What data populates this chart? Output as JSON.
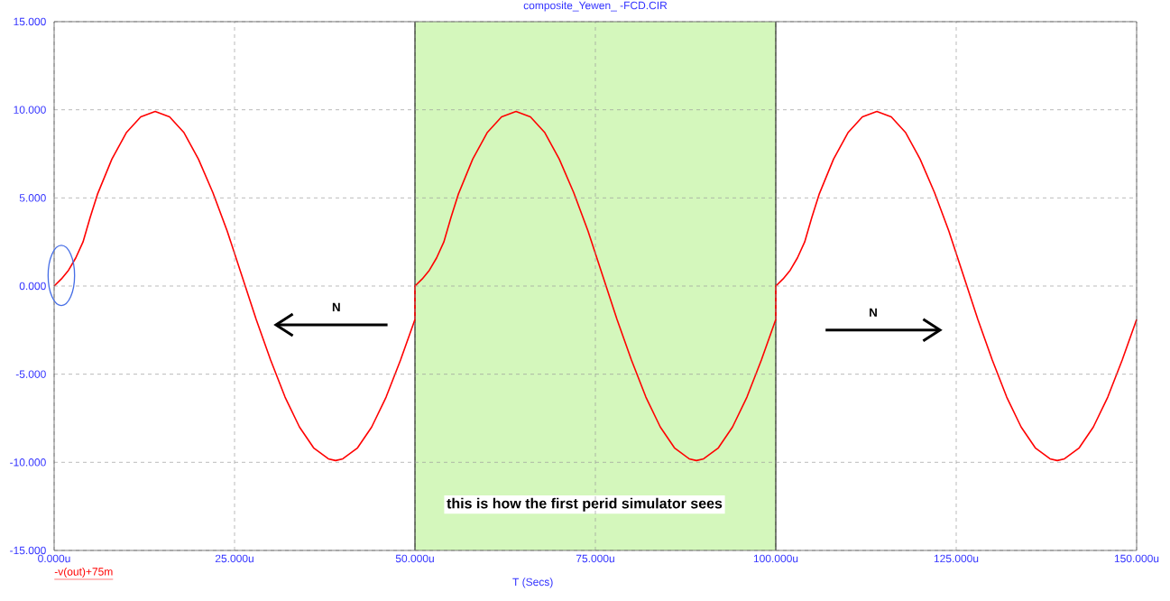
{
  "chart_data": {
    "type": "line",
    "title": "composite_Yewen_ -FCD.CIR",
    "xlabel": "T (Secs)",
    "series": [
      {
        "name": "-v(out)+75m",
        "color": "#ff0000",
        "x": [
          0,
          1,
          2,
          3,
          4,
          5,
          6,
          8,
          10,
          12,
          14,
          16,
          18,
          20,
          22,
          24,
          26,
          28,
          30,
          32,
          34,
          36,
          38,
          39,
          40,
          42,
          44,
          46,
          48,
          50,
          50,
          51,
          52,
          53,
          54,
          55,
          56,
          58,
          60,
          62,
          64,
          66,
          68,
          70,
          72,
          74,
          76,
          78,
          80,
          82,
          84,
          86,
          88,
          89,
          90,
          92,
          94,
          96,
          98,
          100,
          100,
          101,
          102,
          103,
          104,
          105,
          106,
          108,
          110,
          112,
          114,
          116,
          118,
          120,
          122,
          124,
          126,
          128,
          130,
          132,
          134,
          136,
          138,
          139,
          140,
          142,
          144,
          146,
          148,
          150
        ],
        "values": [
          0,
          0.4,
          0.9,
          1.6,
          2.5,
          3.9,
          5.2,
          7.2,
          8.7,
          9.6,
          9.9,
          9.6,
          8.7,
          7.2,
          5.3,
          3.1,
          0.6,
          -1.9,
          -4.2,
          -6.3,
          -8.0,
          -9.2,
          -9.8,
          -9.9,
          -9.8,
          -9.2,
          -8.0,
          -6.3,
          -4.2,
          -1.9,
          0,
          0.4,
          0.9,
          1.6,
          2.5,
          3.9,
          5.2,
          7.2,
          8.7,
          9.6,
          9.9,
          9.6,
          8.7,
          7.2,
          5.3,
          3.1,
          0.6,
          -1.9,
          -4.2,
          -6.3,
          -8.0,
          -9.2,
          -9.8,
          -9.9,
          -9.8,
          -9.2,
          -8.0,
          -6.3,
          -4.2,
          -1.9,
          0,
          0.4,
          0.9,
          1.6,
          2.5,
          3.9,
          5.2,
          7.2,
          8.7,
          9.6,
          9.9,
          9.6,
          8.7,
          7.2,
          5.3,
          3.1,
          0.6,
          -1.9,
          -4.2,
          -6.3,
          -8.0,
          -9.2,
          -9.8,
          -9.9,
          -9.8,
          -9.2,
          -8.0,
          -6.3,
          -4.2,
          -1.9
        ]
      }
    ],
    "xlim": [
      0,
      150
    ],
    "xticks": [
      {
        "value": 0,
        "label": "0.000u"
      },
      {
        "value": 25,
        "label": "25.000u"
      },
      {
        "value": 50,
        "label": "50.000u"
      },
      {
        "value": 75,
        "label": "75.000u"
      },
      {
        "value": 100,
        "label": "100.000u"
      },
      {
        "value": 125,
        "label": "125.000u"
      },
      {
        "value": 150,
        "label": "150.000u"
      }
    ],
    "ylim": [
      -15,
      15
    ],
    "yticks": [
      {
        "value": -15,
        "label": "-15.000"
      },
      {
        "value": -10,
        "label": "-10.000"
      },
      {
        "value": -5,
        "label": "-5.000"
      },
      {
        "value": 0,
        "label": "0.000"
      },
      {
        "value": 5,
        "label": "5.000"
      },
      {
        "value": 10,
        "label": "10.000"
      },
      {
        "value": 15,
        "label": "15.000"
      }
    ],
    "bands": [
      {
        "axis": "x",
        "from": 50,
        "to": 100,
        "color": "#d4f7bc"
      }
    ],
    "annotations": [
      "N",
      "N",
      "this is how the first perid simulator sees"
    ],
    "grid": true,
    "legend": "bottom left",
    "marker": "none",
    "line_style": "solid"
  }
}
